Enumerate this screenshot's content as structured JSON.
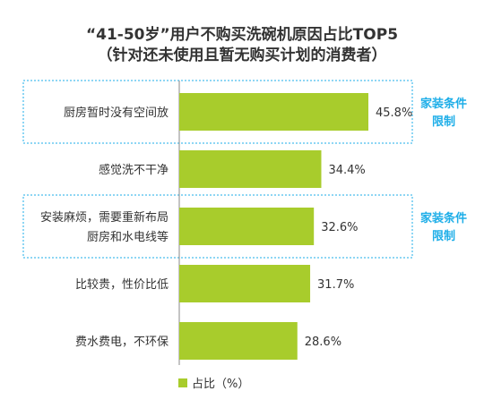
{
  "chart_data": {
    "type": "bar",
    "orientation": "horizontal",
    "title": "“41-50岁”用户不购买洗碗机原因占比TOP5",
    "subtitle": "（针对还未使用且暂无购买计划的消费者）",
    "categories": [
      [
        "厨房暂时没有空间放"
      ],
      [
        "感觉洗不干净"
      ],
      [
        "安装麻烦，需要重新布局",
        "厨房和水电线等"
      ],
      [
        "比较贵，性价比低"
      ],
      [
        "费水费电，不环保"
      ]
    ],
    "values": [
      45.8,
      34.4,
      32.6,
      31.7,
      28.6
    ],
    "value_labels": [
      "45.8%",
      "34.4%",
      "32.6%",
      "31.7%",
      "28.6%"
    ],
    "series": [
      {
        "name": "占比（%）",
        "values": [
          45.8,
          34.4,
          32.6,
          31.7,
          28.6
        ]
      }
    ],
    "xlim": [
      0,
      50
    ],
    "legend_position": "bottom-center",
    "annotations": [
      {
        "lines": [
          "家装条件",
          "限制"
        ],
        "category_index": 0
      },
      {
        "lines": [
          "家装条件",
          "限制"
        ],
        "category_index": 2
      }
    ],
    "colors": {
      "bar": "#a8cc2c",
      "annotation": "#1eaee8",
      "axis": "#888888",
      "text": "#333333"
    }
  }
}
